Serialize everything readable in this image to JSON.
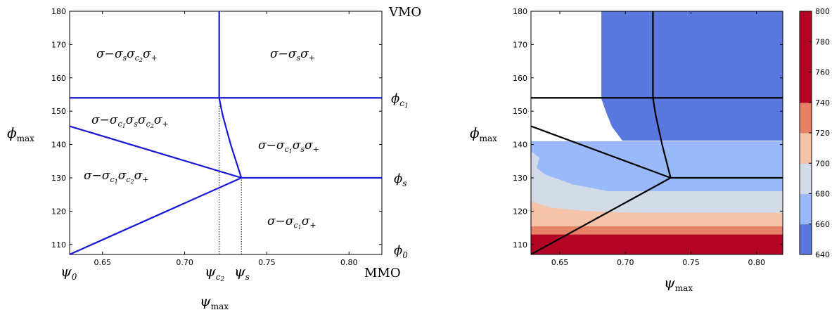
{
  "chart_data": [
    {
      "type": "line",
      "xlabel": "ψmax",
      "ylabel": "ϕmax",
      "xlim": [
        0.63,
        0.82
      ],
      "ylim": [
        107,
        180
      ],
      "x_ticks": [
        "0.65",
        "0.70",
        "0.75",
        "0.80"
      ],
      "y_ticks": [
        "110",
        "120",
        "130",
        "140",
        "150",
        "160",
        "170",
        "180"
      ],
      "series": [
        {
          "x": [
            0.63,
            0.82
          ],
          "y": [
            154,
            154
          ]
        },
        {
          "x": [
            0.721,
            0.721,
            0.723,
            0.728,
            0.7345
          ],
          "y": [
            180,
            154,
            149,
            140,
            130
          ]
        },
        {
          "x": [
            0.7345,
            0.82
          ],
          "y": [
            130,
            130
          ]
        },
        {
          "x": [
            0.63,
            0.7345
          ],
          "y": [
            145.5,
            130
          ]
        },
        {
          "x": [
            0.63,
            0.7345
          ],
          "y": [
            107,
            130
          ]
        }
      ],
      "dotted_lines": [
        {
          "x": 0.721,
          "y_from": 107,
          "y_to": 152
        },
        {
          "x": 0.7345,
          "y_from": 107,
          "y_to": 130
        }
      ],
      "region_labels": [
        {
          "text": "σ−σsσc2σ+",
          "x": 0.668,
          "y": 166
        },
        {
          "text": "σ−σsσ+",
          "x": 0.775,
          "y": 166
        },
        {
          "text": "σ−σc1σsσc2σ+",
          "x": 0.675,
          "y": 148
        },
        {
          "text": "σ−σc1σsσ+",
          "x": 0.777,
          "y": 138
        },
        {
          "text": "σ−σc1σc2σ+",
          "x": 0.664,
          "y": 131
        },
        {
          "text": "σ−σc1σ+",
          "x": 0.777,
          "y": 116
        }
      ],
      "right_labels": [
        {
          "text": "VMO",
          "y": 180
        },
        {
          "text": "ϕc1",
          "y": 154
        },
        {
          "text": "ϕs",
          "y": 130
        },
        {
          "text": "ϕ0",
          "y": 107
        },
        {
          "text": "MMO",
          "y": 101
        }
      ],
      "bottom_labels": [
        {
          "text": "ψ0",
          "x": 0.63
        },
        {
          "text": "ψc2",
          "x": 0.721
        },
        {
          "text": "ψs",
          "x": 0.7345
        }
      ]
    },
    {
      "type": "heatmap",
      "xlabel": "ψmax",
      "ylabel": "ϕmax",
      "xlim": [
        0.628,
        0.82
      ],
      "ylim": [
        107,
        180
      ],
      "x_ticks": [
        "0.65",
        "0.70",
        "0.75",
        "0.80"
      ],
      "y_ticks": [
        "110",
        "120",
        "130",
        "140",
        "150",
        "160",
        "170",
        "180"
      ],
      "colorbar": {
        "levels": [
          640,
          660,
          680,
          700,
          720,
          740,
          760,
          780,
          800
        ],
        "tick_labels": [
          "640",
          "660",
          "680",
          "700",
          "720",
          "740",
          "760",
          "780",
          "800"
        ],
        "colors": [
          "#5a78dd",
          "#9ab9f8",
          "#d3dbe8",
          "#f5c3a8",
          "#e78166",
          "#b40426",
          "#b40426",
          "#b40426"
        ]
      },
      "bands": [
        {
          "y": [
            107,
            113
          ],
          "value": 750
        },
        {
          "y": [
            113,
            115.5
          ],
          "value": 730
        },
        {
          "y": [
            115.5,
            119
          ],
          "value": 710
        },
        {
          "y": [
            119,
            125
          ],
          "value": 690
        },
        {
          "y": [
            125,
            141
          ],
          "value": 670
        },
        {
          "y": [
            141,
            180
          ],
          "value": 650
        }
      ],
      "overlay_series": [
        {
          "x": [
            0.628,
            0.82
          ],
          "y": [
            154,
            154
          ]
        },
        {
          "x": [
            0.721,
            0.721,
            0.723,
            0.728,
            0.7345
          ],
          "y": [
            180,
            154,
            149,
            140,
            130
          ]
        },
        {
          "x": [
            0.7345,
            0.82
          ],
          "y": [
            130,
            130
          ]
        },
        {
          "x": [
            0.628,
            0.7345
          ],
          "y": [
            145.5,
            130
          ]
        },
        {
          "x": [
            0.628,
            0.7345
          ],
          "y": [
            107,
            130
          ]
        }
      ]
    }
  ]
}
